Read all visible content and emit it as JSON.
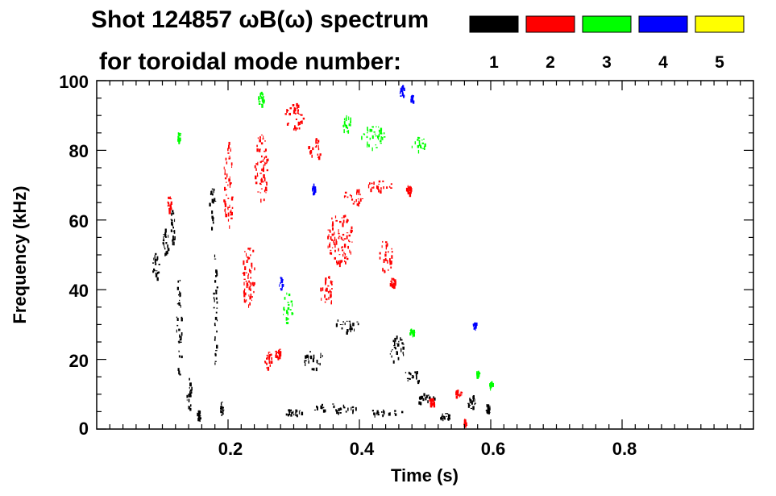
{
  "chart_data": {
    "type": "heatmap",
    "title_line1": "Shot 124857 ωB(ω) spectrum",
    "title_line2": "for toroidal mode number:",
    "xlabel": "Time (s)",
    "ylabel": "Frequency (kHz)",
    "xlim": [
      0.0,
      1.0
    ],
    "ylim": [
      0,
      100
    ],
    "x_ticks": [
      {
        "value": 0.2,
        "label": "0.2"
      },
      {
        "value": 0.4,
        "label": "0.4"
      },
      {
        "value": 0.6,
        "label": "0.6"
      },
      {
        "value": 0.8,
        "label": "0.8"
      }
    ],
    "y_ticks": [
      {
        "value": 0,
        "label": "0"
      },
      {
        "value": 20,
        "label": "20"
      },
      {
        "value": 40,
        "label": "40"
      },
      {
        "value": 60,
        "label": "60"
      },
      {
        "value": 80,
        "label": "80"
      },
      {
        "value": 100,
        "label": "100"
      }
    ],
    "legend": [
      {
        "n": "1",
        "color": "#000000"
      },
      {
        "n": "2",
        "color": "#ff0000"
      },
      {
        "n": "3",
        "color": "#00ff00"
      },
      {
        "n": "4",
        "color": "#0000ff"
      },
      {
        "n": "5",
        "color": "#ffff00"
      }
    ],
    "series": [
      {
        "mode": "1",
        "color": "#000000",
        "blobs": [
          {
            "t": 0.09,
            "f": 47,
            "dt": 0.012,
            "df": 8
          },
          {
            "t": 0.105,
            "f": 54,
            "dt": 0.01,
            "df": 8
          },
          {
            "t": 0.115,
            "f": 58,
            "dt": 0.008,
            "df": 10
          },
          {
            "t": 0.125,
            "f": 30,
            "dt": 0.008,
            "df": 30
          },
          {
            "t": 0.14,
            "f": 10,
            "dt": 0.01,
            "df": 10
          },
          {
            "t": 0.155,
            "f": 4,
            "dt": 0.006,
            "df": 3
          },
          {
            "t": 0.175,
            "f": 65,
            "dt": 0.008,
            "df": 15
          },
          {
            "t": 0.18,
            "f": 35,
            "dt": 0.006,
            "df": 35
          },
          {
            "t": 0.19,
            "f": 6,
            "dt": 0.004,
            "df": 4
          },
          {
            "t": 0.36,
            "f": 6,
            "dt": 0.07,
            "df": 3
          },
          {
            "t": 0.3,
            "f": 5,
            "dt": 0.03,
            "df": 2
          },
          {
            "t": 0.44,
            "f": 5,
            "dt": 0.05,
            "df": 2
          },
          {
            "t": 0.38,
            "f": 30,
            "dt": 0.04,
            "df": 4
          },
          {
            "t": 0.455,
            "f": 23,
            "dt": 0.025,
            "df": 8
          },
          {
            "t": 0.48,
            "f": 15,
            "dt": 0.03,
            "df": 4
          },
          {
            "t": 0.5,
            "f": 9,
            "dt": 0.03,
            "df": 3
          },
          {
            "t": 0.53,
            "f": 4,
            "dt": 0.02,
            "df": 2
          },
          {
            "t": 0.57,
            "f": 8,
            "dt": 0.012,
            "df": 4
          },
          {
            "t": 0.595,
            "f": 6,
            "dt": 0.006,
            "df": 3
          },
          {
            "t": 0.33,
            "f": 20,
            "dt": 0.03,
            "df": 6
          }
        ]
      },
      {
        "mode": "2",
        "color": "#ff0000",
        "blobs": [
          {
            "t": 0.11,
            "f": 65,
            "dt": 0.006,
            "df": 5
          },
          {
            "t": 0.2,
            "f": 70,
            "dt": 0.015,
            "df": 25
          },
          {
            "t": 0.25,
            "f": 75,
            "dt": 0.02,
            "df": 20
          },
          {
            "t": 0.3,
            "f": 90,
            "dt": 0.03,
            "df": 8
          },
          {
            "t": 0.33,
            "f": 80,
            "dt": 0.02,
            "df": 8
          },
          {
            "t": 0.26,
            "f": 20,
            "dt": 0.012,
            "df": 5
          },
          {
            "t": 0.275,
            "f": 22,
            "dt": 0.008,
            "df": 3
          },
          {
            "t": 0.37,
            "f": 55,
            "dt": 0.04,
            "df": 15
          },
          {
            "t": 0.39,
            "f": 67,
            "dt": 0.03,
            "df": 5
          },
          {
            "t": 0.43,
            "f": 70,
            "dt": 0.04,
            "df": 3
          },
          {
            "t": 0.44,
            "f": 50,
            "dt": 0.02,
            "df": 10
          },
          {
            "t": 0.45,
            "f": 42,
            "dt": 0.01,
            "df": 3
          },
          {
            "t": 0.475,
            "f": 69,
            "dt": 0.008,
            "df": 3
          },
          {
            "t": 0.35,
            "f": 40,
            "dt": 0.02,
            "df": 10
          },
          {
            "t": 0.23,
            "f": 45,
            "dt": 0.02,
            "df": 20
          },
          {
            "t": 0.55,
            "f": 10,
            "dt": 0.01,
            "df": 3
          },
          {
            "t": 0.51,
            "f": 8,
            "dt": 0.01,
            "df": 2
          },
          {
            "t": 0.56,
            "f": 2,
            "dt": 0.005,
            "df": 2
          }
        ]
      },
      {
        "mode": "3",
        "color": "#00ff00",
        "blobs": [
          {
            "t": 0.42,
            "f": 84,
            "dt": 0.035,
            "df": 8
          },
          {
            "t": 0.49,
            "f": 82,
            "dt": 0.025,
            "df": 4
          },
          {
            "t": 0.38,
            "f": 88,
            "dt": 0.015,
            "df": 5
          },
          {
            "t": 0.125,
            "f": 84,
            "dt": 0.005,
            "df": 3
          },
          {
            "t": 0.25,
            "f": 95,
            "dt": 0.01,
            "df": 4
          },
          {
            "t": 0.29,
            "f": 35,
            "dt": 0.015,
            "df": 10
          },
          {
            "t": 0.48,
            "f": 28,
            "dt": 0.008,
            "df": 2
          },
          {
            "t": 0.58,
            "f": 16,
            "dt": 0.005,
            "df": 2
          },
          {
            "t": 0.6,
            "f": 13,
            "dt": 0.004,
            "df": 2
          }
        ]
      },
      {
        "mode": "4",
        "color": "#0000ff",
        "blobs": [
          {
            "t": 0.465,
            "f": 97,
            "dt": 0.008,
            "df": 4
          },
          {
            "t": 0.28,
            "f": 42,
            "dt": 0.005,
            "df": 4
          },
          {
            "t": 0.33,
            "f": 69,
            "dt": 0.004,
            "df": 3
          },
          {
            "t": 0.48,
            "f": 95,
            "dt": 0.004,
            "df": 2
          },
          {
            "t": 0.575,
            "f": 30,
            "dt": 0.003,
            "df": 2
          }
        ]
      },
      {
        "mode": "5",
        "color": "#ffff00",
        "blobs": []
      }
    ]
  }
}
